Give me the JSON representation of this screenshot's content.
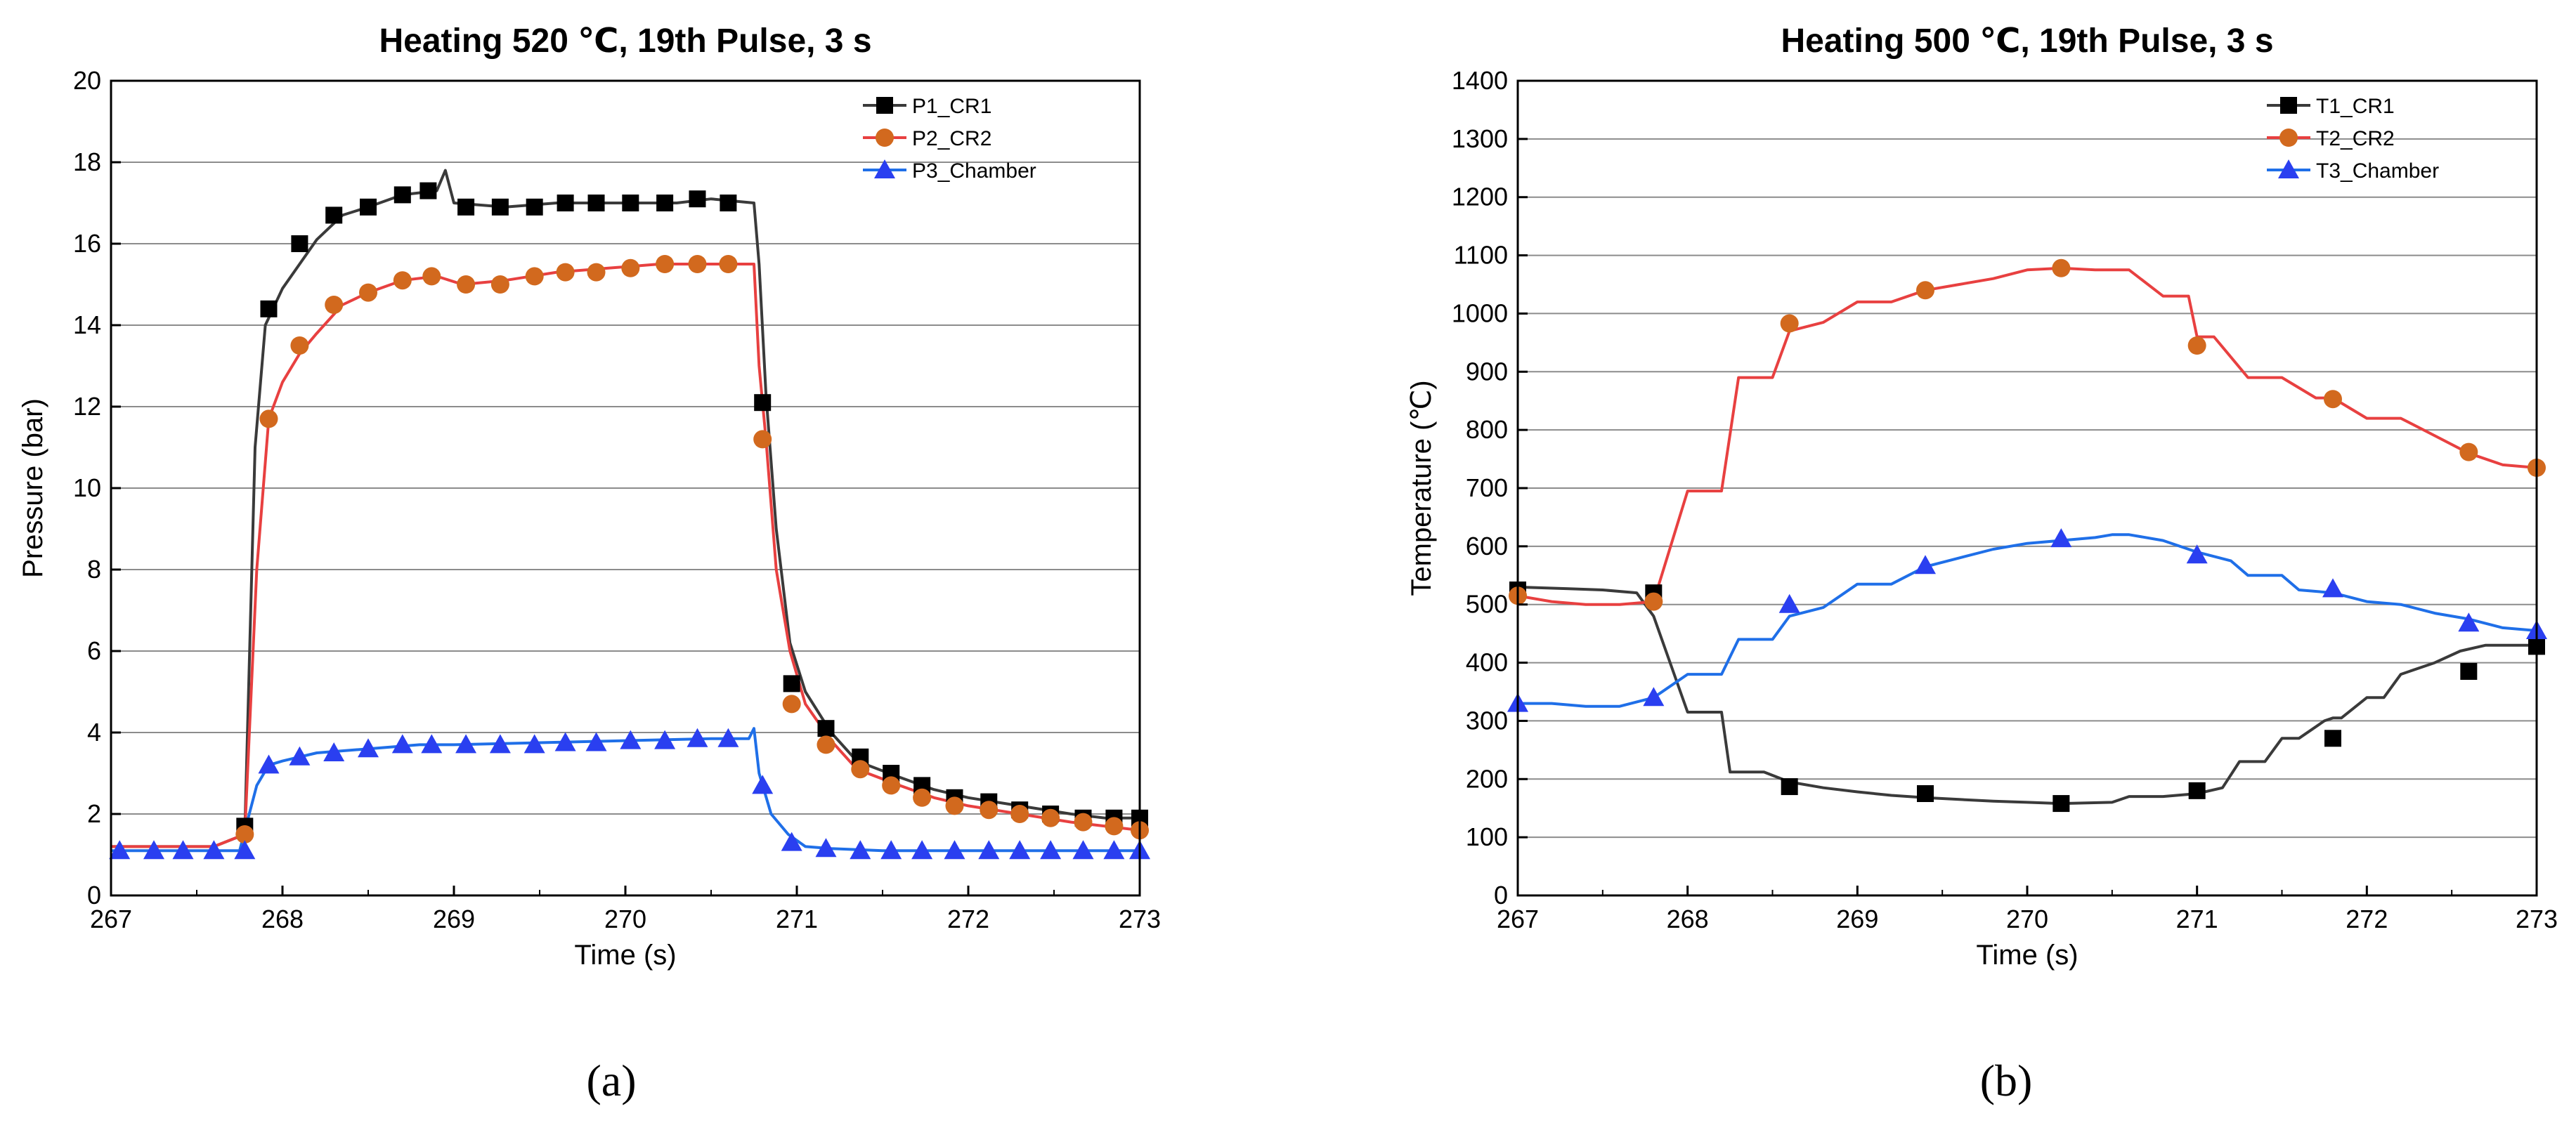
{
  "chart_data": [
    {
      "type": "line",
      "panel_label": "(a)",
      "title": "Heating 520 ℃, 19th Pulse, 3 s",
      "xlabel": "Time (s)",
      "ylabel": "Pressure (bar)",
      "xlim": [
        267,
        273
      ],
      "ylim": [
        0,
        20
      ],
      "xticks": [
        267,
        268,
        269,
        270,
        271,
        272,
        273
      ],
      "yticks": [
        0,
        2,
        4,
        6,
        8,
        10,
        12,
        14,
        16,
        18,
        20
      ],
      "grid": "horizontal",
      "legend_position": "top-right",
      "series": [
        {
          "name": "P1_CR1",
          "color": "#3a3a3a",
          "marker": "square",
          "marker_color": "#000000",
          "x": [
            267.0,
            267.6,
            267.78,
            267.84,
            267.9,
            268.0,
            268.1,
            268.2,
            268.35,
            268.5,
            268.7,
            268.9,
            268.95,
            269.0,
            269.3,
            269.6,
            270.0,
            270.3,
            270.5,
            270.75,
            270.78,
            270.82,
            270.88,
            270.96,
            271.05,
            271.2,
            271.35,
            271.6,
            271.8,
            272.0,
            272.3,
            272.6,
            272.8,
            273.0
          ],
          "y": [
            1.2,
            1.2,
            1.5,
            11.0,
            14.0,
            14.9,
            15.5,
            16.1,
            16.7,
            16.9,
            17.2,
            17.3,
            17.8,
            17.0,
            16.9,
            17.0,
            17.0,
            17.0,
            17.1,
            17.0,
            15.5,
            12.3,
            9.0,
            6.2,
            5.0,
            4.0,
            3.3,
            2.9,
            2.6,
            2.4,
            2.2,
            2.0,
            1.9,
            1.9
          ],
          "markers_x": [
            267.78,
            267.92,
            268.1,
            268.3,
            268.5,
            268.7,
            268.85,
            269.07,
            269.27,
            269.47,
            269.65,
            269.83,
            270.03,
            270.23,
            270.42,
            270.6,
            270.8,
            270.97,
            271.17,
            271.37,
            271.55,
            271.73,
            271.92,
            272.12,
            272.3,
            272.48,
            272.67,
            272.85,
            273.0
          ],
          "markers_y": [
            1.7,
            14.4,
            16.0,
            16.7,
            16.9,
            17.2,
            17.3,
            16.9,
            16.9,
            16.9,
            17.0,
            17.0,
            17.0,
            17.0,
            17.1,
            17.0,
            12.1,
            5.2,
            4.1,
            3.4,
            3.0,
            2.7,
            2.4,
            2.3,
            2.1,
            2.0,
            1.9,
            1.9,
            1.9
          ]
        },
        {
          "name": "P2_CR2",
          "color": "#e84040",
          "marker": "circle",
          "marker_color": "#d2691e",
          "x": [
            267.0,
            267.6,
            267.78,
            267.85,
            267.92,
            268.0,
            268.1,
            268.2,
            268.35,
            268.5,
            268.7,
            268.9,
            269.05,
            269.3,
            269.6,
            269.9,
            270.2,
            270.5,
            270.75,
            270.78,
            270.82,
            270.88,
            270.96,
            271.05,
            271.2,
            271.35,
            271.6,
            271.8,
            272.0,
            272.3,
            272.6,
            272.8,
            273.0
          ],
          "y": [
            1.2,
            1.2,
            1.5,
            8.0,
            11.7,
            12.6,
            13.3,
            13.8,
            14.5,
            14.8,
            15.1,
            15.2,
            15.0,
            15.1,
            15.3,
            15.4,
            15.5,
            15.5,
            15.5,
            13.0,
            11.2,
            8.0,
            6.0,
            4.7,
            3.8,
            3.1,
            2.7,
            2.4,
            2.2,
            2.0,
            1.8,
            1.7,
            1.6
          ],
          "markers_x": [
            267.78,
            267.92,
            268.1,
            268.3,
            268.5,
            268.7,
            268.87,
            269.07,
            269.27,
            269.47,
            269.65,
            269.83,
            270.03,
            270.23,
            270.42,
            270.6,
            270.8,
            270.97,
            271.17,
            271.37,
            271.55,
            271.73,
            271.92,
            272.12,
            272.3,
            272.48,
            272.67,
            272.85,
            273.0
          ],
          "markers_y": [
            1.5,
            11.7,
            13.5,
            14.5,
            14.8,
            15.1,
            15.2,
            15.0,
            15.0,
            15.2,
            15.3,
            15.3,
            15.4,
            15.5,
            15.5,
            15.5,
            11.2,
            4.7,
            3.7,
            3.1,
            2.7,
            2.4,
            2.2,
            2.1,
            2.0,
            1.9,
            1.8,
            1.7,
            1.6
          ]
        },
        {
          "name": "P3_Chamber",
          "color": "#1f6fe8",
          "marker": "triangle",
          "marker_color": "#2a3ff0",
          "x": [
            267.0,
            267.75,
            267.85,
            267.92,
            268.0,
            268.2,
            268.5,
            268.8,
            269.0,
            269.5,
            270.0,
            270.5,
            270.72,
            270.75,
            270.78,
            270.85,
            270.95,
            271.05,
            271.2,
            271.5,
            272.0,
            272.5,
            273.0
          ],
          "y": [
            1.1,
            1.1,
            2.7,
            3.2,
            3.3,
            3.5,
            3.6,
            3.7,
            3.7,
            3.75,
            3.8,
            3.85,
            3.85,
            4.1,
            3.0,
            2.0,
            1.5,
            1.2,
            1.15,
            1.1,
            1.1,
            1.1,
            1.1
          ],
          "markers_x": [
            267.05,
            267.25,
            267.42,
            267.6,
            267.78,
            267.92,
            268.1,
            268.3,
            268.5,
            268.7,
            268.87,
            269.07,
            269.27,
            269.47,
            269.65,
            269.83,
            270.03,
            270.23,
            270.42,
            270.6,
            270.8,
            270.97,
            271.17,
            271.37,
            271.55,
            271.73,
            271.92,
            272.12,
            272.3,
            272.48,
            272.67,
            272.85,
            273.0
          ],
          "markers_y": [
            1.1,
            1.1,
            1.1,
            1.1,
            1.1,
            3.2,
            3.4,
            3.5,
            3.6,
            3.7,
            3.7,
            3.7,
            3.7,
            3.7,
            3.75,
            3.75,
            3.8,
            3.8,
            3.85,
            3.85,
            2.7,
            1.3,
            1.15,
            1.1,
            1.1,
            1.1,
            1.1,
            1.1,
            1.1,
            1.1,
            1.1,
            1.1,
            1.1
          ]
        }
      ]
    },
    {
      "type": "line",
      "panel_label": "(b)",
      "title": "Heating 500 ℃, 19th Pulse, 3 s",
      "xlabel": "Time (s)",
      "ylabel": "Temperature (℃)",
      "xlim": [
        267,
        273
      ],
      "ylim": [
        0,
        1400
      ],
      "xticks": [
        267,
        268,
        269,
        270,
        271,
        272,
        273
      ],
      "yticks": [
        0,
        100,
        200,
        300,
        400,
        500,
        600,
        700,
        800,
        900,
        1000,
        1100,
        1200,
        1300,
        1400
      ],
      "grid": "horizontal",
      "legend_position": "top-right",
      "series": [
        {
          "name": "T1_CR1",
          "color": "#3a3a3a",
          "marker": "square",
          "marker_color": "#000000",
          "x": [
            267.0,
            267.3,
            267.5,
            267.7,
            267.8,
            268.0,
            268.2,
            268.25,
            268.45,
            268.6,
            268.8,
            269.0,
            269.2,
            269.4,
            269.6,
            269.8,
            270.0,
            270.2,
            270.5,
            270.6,
            270.8,
            271.0,
            271.15,
            271.25,
            271.4,
            271.5,
            271.6,
            271.75,
            271.8,
            271.85,
            272.0,
            272.1,
            272.2,
            272.4,
            272.55,
            272.7,
            272.85,
            273.0
          ],
          "y": [
            530,
            527,
            525,
            520,
            480,
            315,
            315,
            212,
            212,
            195,
            185,
            178,
            172,
            168,
            165,
            162,
            160,
            158,
            160,
            170,
            170,
            175,
            185,
            230,
            230,
            270,
            270,
            300,
            305,
            305,
            340,
            340,
            380,
            400,
            420,
            430,
            430,
            430
          ],
          "markers_x": [
            267.0,
            267.8,
            268.6,
            269.4,
            270.2,
            271.0,
            271.8,
            272.6,
            273.0
          ],
          "markers_y": [
            525,
            520,
            187,
            175,
            158,
            180,
            270,
            385,
            428
          ]
        },
        {
          "name": "T2_CR2",
          "color": "#e84040",
          "marker": "circle",
          "marker_color": "#d2691e",
          "x": [
            267.0,
            267.2,
            267.4,
            267.6,
            267.8,
            268.0,
            268.2,
            268.3,
            268.5,
            268.6,
            268.8,
            269.0,
            269.2,
            269.4,
            269.6,
            269.8,
            270.0,
            270.2,
            270.4,
            270.5,
            270.6,
            270.8,
            270.95,
            271.0,
            271.1,
            271.3,
            271.5,
            271.7,
            271.8,
            272.0,
            272.2,
            272.4,
            272.6,
            272.8,
            273.0
          ],
          "y": [
            515,
            505,
            500,
            500,
            505,
            695,
            695,
            890,
            890,
            970,
            985,
            1020,
            1020,
            1040,
            1050,
            1060,
            1075,
            1078,
            1075,
            1075,
            1075,
            1030,
            1030,
            960,
            960,
            890,
            890,
            855,
            855,
            820,
            820,
            790,
            760,
            740,
            735
          ],
          "markers_x": [
            267.0,
            267.8,
            268.6,
            269.4,
            270.2,
            271.0,
            271.8,
            272.6,
            273.0
          ],
          "markers_y": [
            515,
            505,
            983,
            1040,
            1078,
            945,
            853,
            762,
            735
          ]
        },
        {
          "name": "T3_Chamber",
          "color": "#1f6fe8",
          "marker": "triangle",
          "marker_color": "#2a3ff0",
          "x": [
            267.0,
            267.2,
            267.4,
            267.6,
            267.8,
            268.0,
            268.2,
            268.3,
            268.5,
            268.6,
            268.8,
            269.0,
            269.2,
            269.4,
            269.6,
            269.8,
            270.0,
            270.2,
            270.4,
            270.5,
            270.6,
            270.8,
            271.0,
            271.2,
            271.3,
            271.5,
            271.6,
            271.8,
            272.0,
            272.2,
            272.4,
            272.6,
            272.8,
            273.0
          ],
          "y": [
            330,
            330,
            325,
            325,
            340,
            380,
            380,
            440,
            440,
            480,
            495,
            535,
            535,
            565,
            580,
            595,
            605,
            610,
            615,
            620,
            620,
            610,
            590,
            575,
            550,
            550,
            525,
            520,
            505,
            500,
            485,
            475,
            460,
            455
          ],
          "markers_x": [
            267.0,
            267.8,
            268.6,
            269.4,
            270.2,
            271.0,
            271.8,
            272.6,
            273.0
          ],
          "markers_y": [
            330,
            340,
            500,
            567,
            613,
            585,
            527,
            468,
            455
          ]
        }
      ]
    }
  ]
}
